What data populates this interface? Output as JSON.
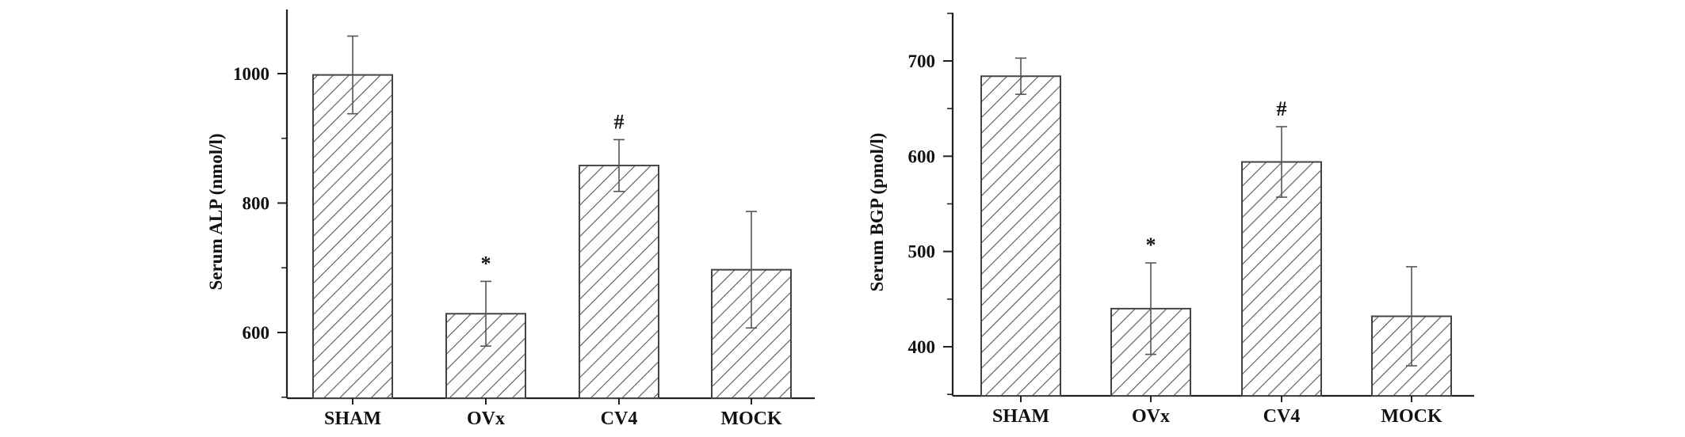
{
  "chart_data": [
    {
      "type": "bar",
      "categories": [
        "SHAM",
        "OVx",
        "CV4",
        "MOCK"
      ],
      "values": [
        998,
        629,
        858,
        697
      ],
      "errors": [
        60,
        50,
        40,
        90
      ],
      "annotations": [
        "",
        "*",
        "#",
        ""
      ],
      "ylabel": "Serum ALP (nmol/l)",
      "ylim": [
        500,
        1100
      ],
      "yticks": [
        600,
        800,
        1000
      ],
      "ytick_labels": [
        "600",
        "800",
        "1000"
      ],
      "bar_fill": "diagonal-hatch",
      "grid": false
    },
    {
      "type": "bar",
      "categories": [
        "SHAM",
        "OVx",
        "CV4",
        "MOCK"
      ],
      "values": [
        684,
        440,
        594,
        432
      ],
      "errors": [
        19,
        48,
        37,
        52
      ],
      "annotations": [
        "",
        "*",
        "#",
        ""
      ],
      "ylabel": "Serum BGP (pmol/l)",
      "ylim": [
        350,
        750
      ],
      "yticks": [
        400,
        500,
        600,
        700
      ],
      "ytick_labels": [
        "400",
        "500",
        "600",
        "700"
      ],
      "bar_fill": "diagonal-hatch",
      "grid": false
    }
  ],
  "colors": {
    "axis": "#222222",
    "bar_stroke": "#444444",
    "hatch": "#555555",
    "background": "#ffffff"
  }
}
